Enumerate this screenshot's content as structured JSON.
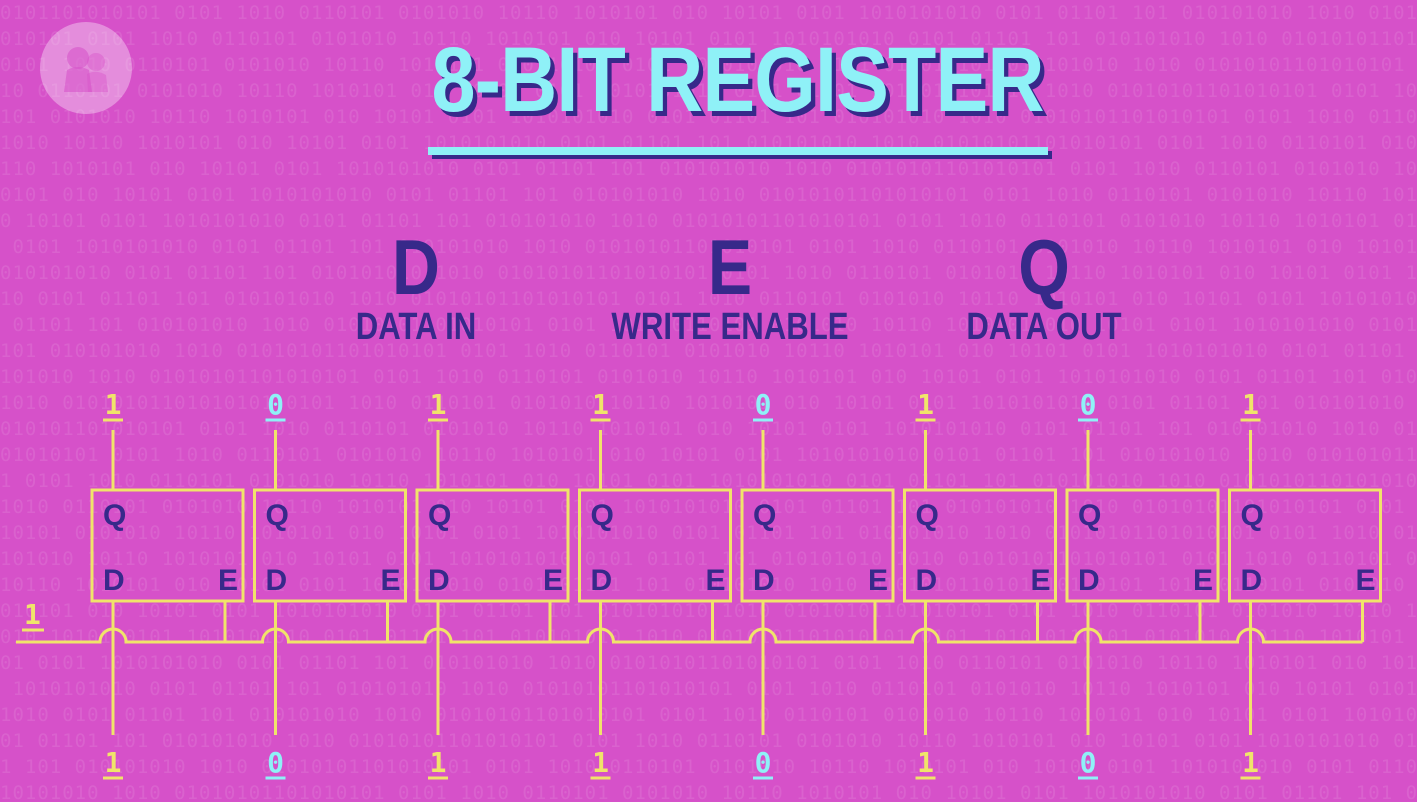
{
  "background_pattern": "0101101010101 0101 1010 0110101 0101010 10110 1010101 010 10101 0101 1010101010 0101 01101 101 010101010 1010 0101",
  "logo_icon": "pbs-logo-icon",
  "title": "8-BIT REGISTER",
  "legend": [
    {
      "letter": "D",
      "desc": "DATA IN"
    },
    {
      "letter": "E",
      "desc": "WRITE ENABLE"
    },
    {
      "letter": "Q",
      "desc": "DATA OUT"
    }
  ],
  "register": {
    "outputs": [
      "1",
      "0",
      "1",
      "1",
      "0",
      "1",
      "0",
      "1"
    ],
    "inputs": [
      "1",
      "0",
      "1",
      "1",
      "0",
      "1",
      "0",
      "1"
    ],
    "write_enable": "1",
    "latch_ports": {
      "q": "Q",
      "d": "D",
      "e": "E"
    }
  },
  "colors": {
    "background": "#d651c9",
    "wire": "#f0e46a",
    "bit_one": "#f0e46a",
    "bit_zero": "#8ff1f7",
    "label": "#37298a"
  }
}
